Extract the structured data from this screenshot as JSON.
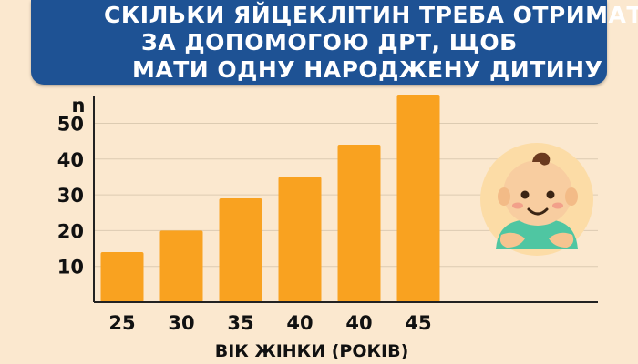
{
  "title_lines": [
    "СКІЛЬКИ ЯЙЦЕКЛІТИН ТРЕБА ОТРИМАТИ",
    "ЗА ДОПОМОГОЮ ДРТ, ЩОБ",
    "МАТИ ОДНУ НАРОДЖЕНУ ДИТИНУ"
  ],
  "colors": {
    "background": "#fbe8cf",
    "banner": "#1e5294",
    "bar": "#f9a220",
    "axis": "#222222"
  },
  "chart_data": {
    "type": "bar",
    "title": "СКІЛЬКИ ЯЙЦЕКЛІТИН ТРЕБА ОТРИМАТИ ЗА ДОПОМОГОЮ ДРТ, ЩОБ МАТИ ОДНУ НАРОДЖЕНУ ДИТИНУ",
    "categories": [
      "25",
      "30",
      "35",
      "40",
      "40",
      "45"
    ],
    "values": [
      14,
      20,
      29,
      35,
      44,
      58
    ],
    "xlabel": "ВІК ЖІНКИ (РОКІВ)",
    "ylabel": "n",
    "ylim": [
      0,
      58
    ],
    "yticks": [
      10,
      20,
      30,
      40,
      50
    ],
    "grid": true,
    "legend": "none"
  },
  "illustration": {
    "icon": "baby-icon"
  }
}
